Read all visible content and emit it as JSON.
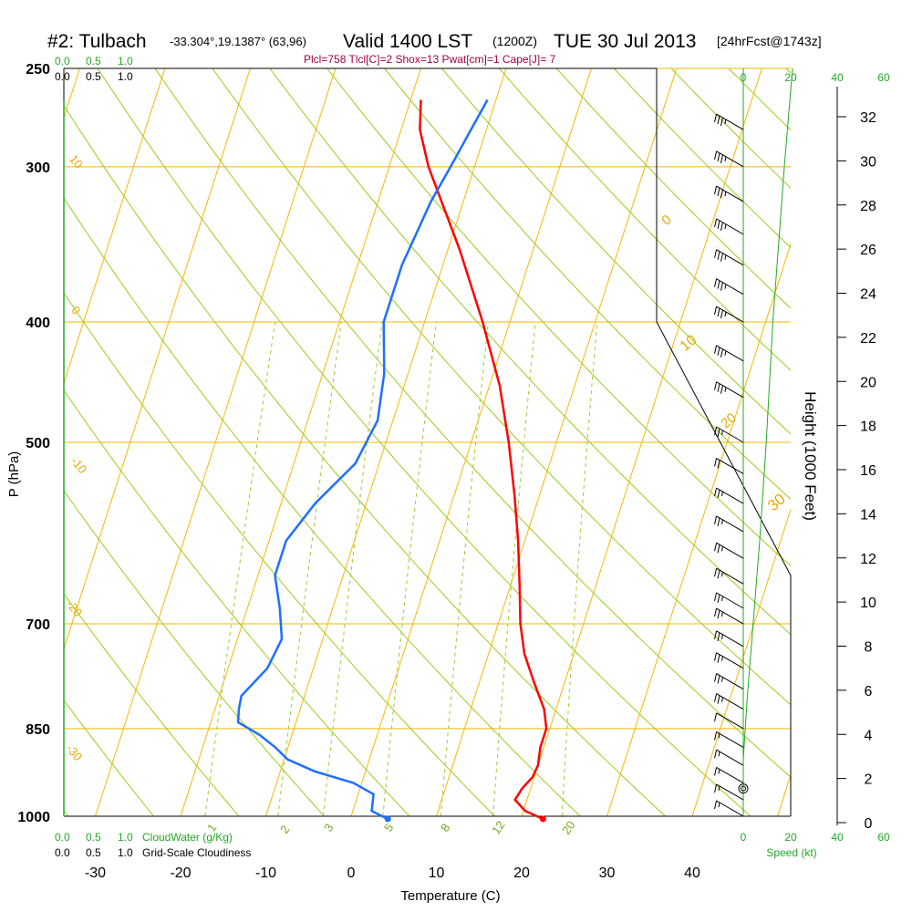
{
  "header": {
    "station": "#2: Tulbach",
    "coords": "-33.304°,19.1387° (63,96)",
    "valid": "Valid 1400 LST",
    "utc": "(1200Z)",
    "date": "TUE 30 Jul 2013",
    "forecast": "[24hrFcst@1743z]",
    "indices": "Plcl=758 Tlcl[C]=2 Shox=13 Pwat[cm]=1 Cape[J]= 7"
  },
  "colors": {
    "temperature": "#ff0000",
    "dewpoint": "#1e6fff",
    "isobar": "#f5b800",
    "dry_adiabat": "#9ccc1a",
    "mixing_ratio": "#99cc33",
    "cloud_scale": "#22aa22",
    "indices_text": "#a0004a"
  },
  "legend": {
    "top_cloudwater": [
      "0.0",
      "0.5",
      "1.0"
    ],
    "top_cloudiness": [
      "0.0",
      "0.5",
      "1.0"
    ],
    "bottom_cloudwater_label": "CloudWater (g/Kg)",
    "bottom_cloudiness_label": "Grid-Scale Cloudiness",
    "speed_label": "Speed (kt)",
    "speed_ticks": [
      "0",
      "20",
      "40",
      "60"
    ]
  },
  "chart_data": {
    "type": "line",
    "title": "Valid 1400 LST (1200Z) TUE 30 Jul 2013",
    "xlabel": "Temperature (C)",
    "ylabel": "P (hPa)",
    "y2label": "Height (1000 Feet)",
    "xlim": [
      -35,
      45
    ],
    "ylim": [
      1000,
      250
    ],
    "x_ticks": [
      -30,
      -20,
      -10,
      0,
      10,
      20,
      30,
      40
    ],
    "pressure_ticks": [
      250,
      300,
      400,
      500,
      700,
      850,
      1000
    ],
    "height_ticks": [
      0,
      2,
      4,
      6,
      8,
      10,
      12,
      14,
      16,
      18,
      20,
      22,
      24,
      26,
      28,
      30,
      32
    ],
    "isotherm_labels": [
      "10",
      "0",
      "-10",
      "-20",
      "-30"
    ],
    "adiabat_labels": [
      "0",
      "10",
      "20",
      "30"
    ],
    "mixing_ratio_labels": [
      "1",
      "2",
      "3",
      "5",
      "8",
      "12",
      "20"
    ],
    "series": [
      {
        "name": "temperature",
        "pressure": [
          1005,
          990,
          970,
          950,
          930,
          910,
          880,
          850,
          820,
          780,
          740,
          700,
          650,
          600,
          550,
          500,
          450,
          400,
          350,
          300,
          280,
          265
        ],
        "values": [
          22.6,
          20.2,
          18.6,
          19.0,
          19.8,
          20.0,
          19.6,
          19.6,
          18.6,
          16.4,
          14.2,
          12.6,
          11.0,
          9.2,
          7.0,
          4.4,
          1.2,
          -3.2,
          -8.6,
          -15.4,
          -17.8,
          -18.8
        ]
      },
      {
        "name": "dewpoint",
        "pressure": [
          1005,
          990,
          960,
          940,
          920,
          900,
          880,
          860,
          840,
          820,
          800,
          760,
          720,
          680,
          640,
          600,
          560,
          520,
          480,
          440,
          400,
          360,
          320,
          300,
          280,
          265
        ],
        "values": [
          4.4,
          2.2,
          1.8,
          -1.0,
          -6.0,
          -9.6,
          -11.5,
          -13.8,
          -16.8,
          -17.2,
          -17.4,
          -15.4,
          -14.8,
          -16.2,
          -18.0,
          -18.0,
          -16.0,
          -12.8,
          -11.8,
          -12.8,
          -14.8,
          -14.8,
          -13.8,
          -12.8,
          -11.8,
          -11.0
        ]
      },
      {
        "name": "cloud",
        "pressure": [
          1000,
          900,
          800,
          700,
          600,
          500,
          400,
          300,
          250
        ],
        "values": [
          0,
          0,
          0.5,
          1.2,
          2.0,
          2.8,
          3.6,
          5.0,
          6.0
        ]
      }
    ],
    "surface_temperature": 22.6,
    "surface_dewpoint": 4.4,
    "winds": {
      "pressure": [
        280,
        300,
        320,
        340,
        360,
        380,
        400,
        430,
        460,
        500,
        530,
        560,
        590,
        620,
        650,
        680,
        700,
        730,
        760,
        790,
        820,
        850,
        880,
        910,
        940,
        970,
        1000
      ],
      "speed_kt": [
        25,
        25,
        25,
        25,
        25,
        25,
        25,
        25,
        25,
        15,
        20,
        15,
        15,
        15,
        15,
        15,
        15,
        15,
        15,
        15,
        15,
        10,
        5,
        5,
        5,
        5,
        5
      ]
    }
  }
}
